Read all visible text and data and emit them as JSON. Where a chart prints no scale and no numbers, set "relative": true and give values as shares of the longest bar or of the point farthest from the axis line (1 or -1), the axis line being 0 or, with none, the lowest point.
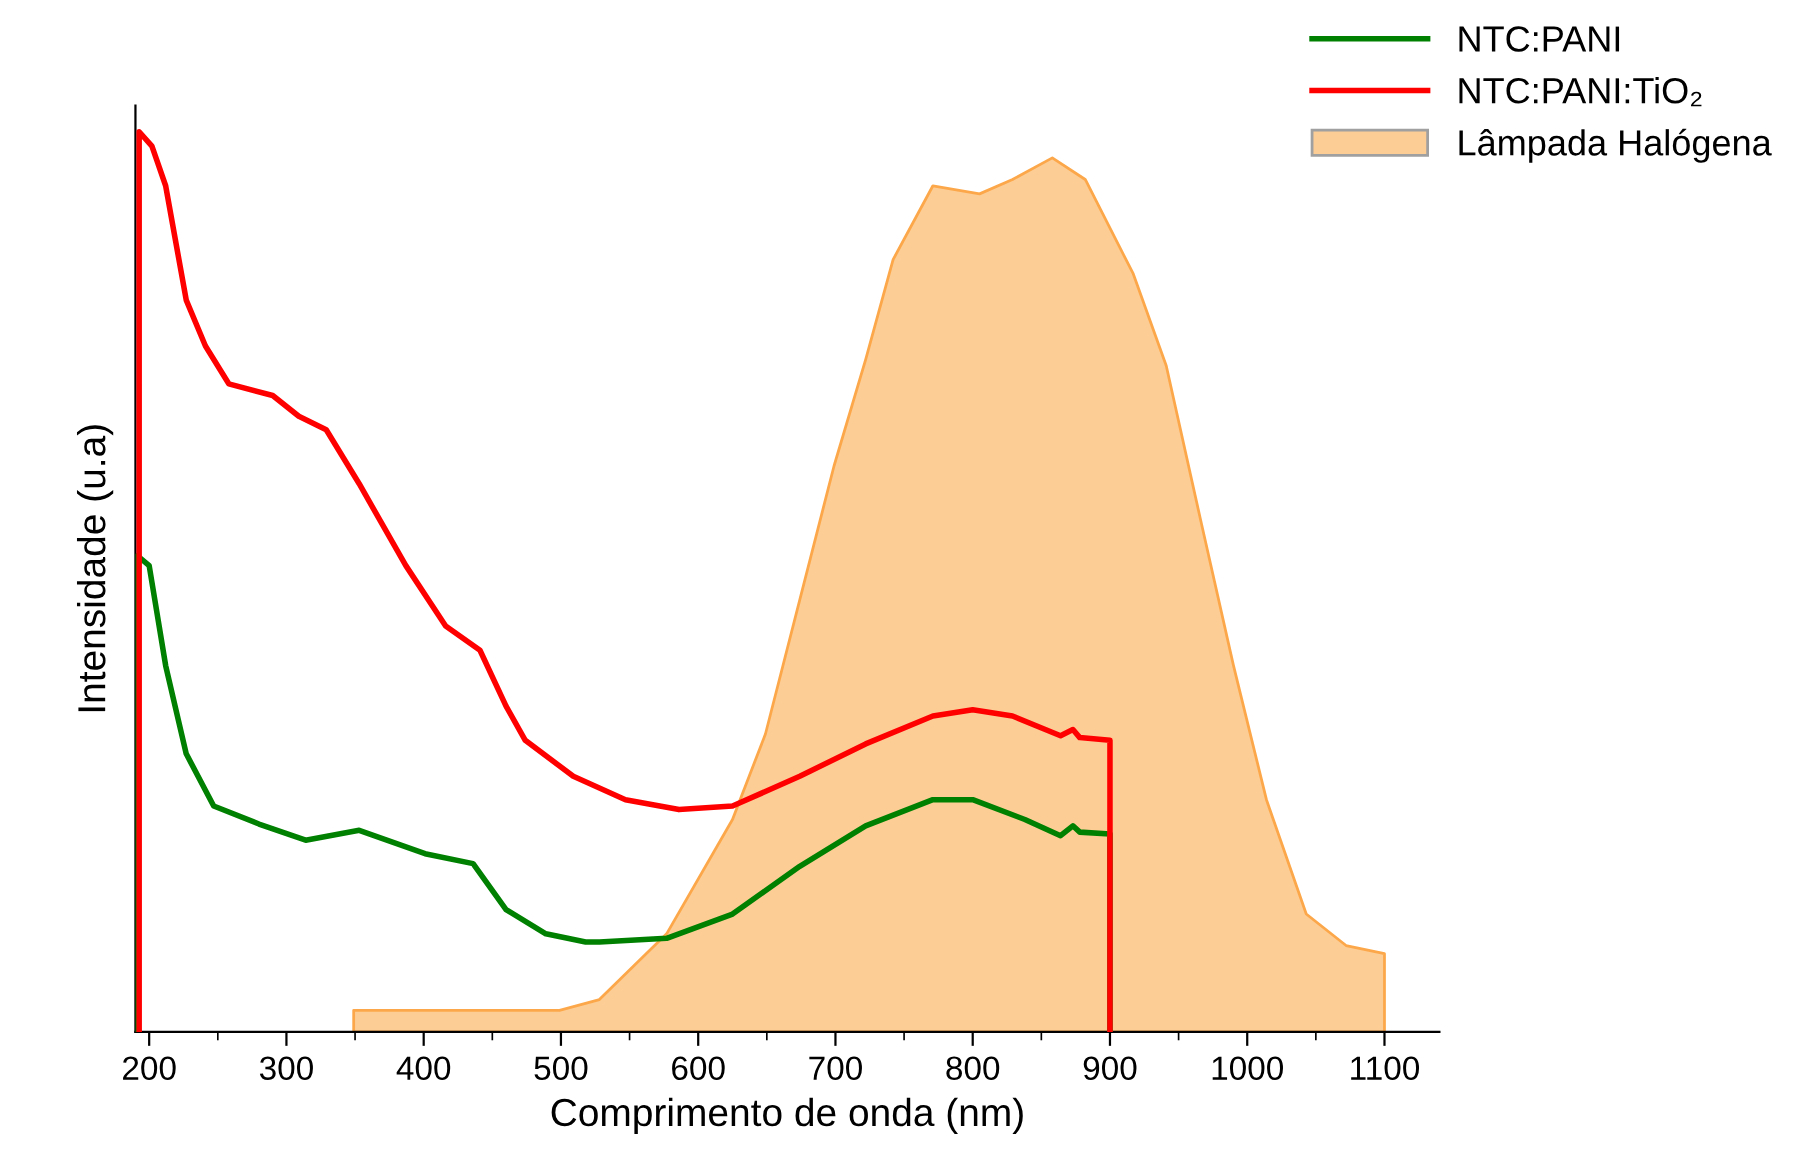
{
  "chart_data": {
    "type": "line",
    "xlabel": "Comprimento de onda (nm)",
    "ylabel": "Intensidade (u.a)",
    "relative": true,
    "xlim": [
      190,
      1140
    ],
    "xticks": [
      200,
      300,
      400,
      500,
      600,
      700,
      800,
      900,
      1000,
      1100
    ],
    "grid": false,
    "legend": "top right",
    "marker": "none",
    "line_style": "solid",
    "series": [
      {
        "name": "NTC:PANI",
        "color": "#008000",
        "x": [
          191.5,
          191.5,
          200,
          212,
          227,
          247,
          280,
          314,
          353,
          401,
          436,
          460,
          489,
          518,
          528,
          577,
          625,
          674,
          722,
          771,
          800,
          838,
          864,
          873,
          878,
          900,
          900
        ],
        "values": [
          0,
          0.529,
          0.518,
          0.407,
          0.309,
          0.251,
          0.231,
          0.213,
          0.224,
          0.198,
          0.187,
          0.136,
          0.109,
          0.1,
          0.1,
          0.104,
          0.131,
          0.184,
          0.229,
          0.258,
          0.258,
          0.236,
          0.218,
          0.229,
          0.222,
          0.22,
          0
        ]
      },
      {
        "name": "NTC:PANI:TiO₂",
        "color": "#ff0000",
        "x": [
          192.7,
          192.7,
          202,
          212,
          227,
          241,
          258,
          290,
          309,
          329,
          353,
          387,
          416,
          441,
          460,
          474,
          509,
          547,
          586,
          625,
          674,
          722,
          771,
          800,
          829,
          864,
          873,
          878,
          900,
          900
        ],
        "values": [
          0,
          1,
          0.984,
          0.94,
          0.813,
          0.762,
          0.72,
          0.707,
          0.684,
          0.669,
          0.609,
          0.518,
          0.451,
          0.424,
          0.362,
          0.324,
          0.284,
          0.258,
          0.247,
          0.251,
          0.284,
          0.32,
          0.351,
          0.358,
          0.351,
          0.329,
          0.336,
          0.327,
          0.324,
          0
        ]
      },
      {
        "name": "Lâmpada Halógena",
        "type": "area",
        "color": "#fdcd96",
        "x": [
          349,
          499,
          528,
          577,
          625,
          649,
          674,
          699,
          722,
          742,
          771,
          805,
          829,
          858,
          882,
          917,
          941,
          966,
          990,
          1014,
          1043,
          1072,
          1100
        ],
        "values": [
          0.024,
          0.024,
          0.036,
          0.109,
          0.236,
          0.331,
          0.48,
          0.629,
          0.747,
          0.858,
          0.94,
          0.931,
          0.947,
          0.971,
          0.947,
          0.842,
          0.74,
          0.569,
          0.407,
          0.258,
          0.131,
          0.096,
          0.087
        ]
      }
    ]
  }
}
